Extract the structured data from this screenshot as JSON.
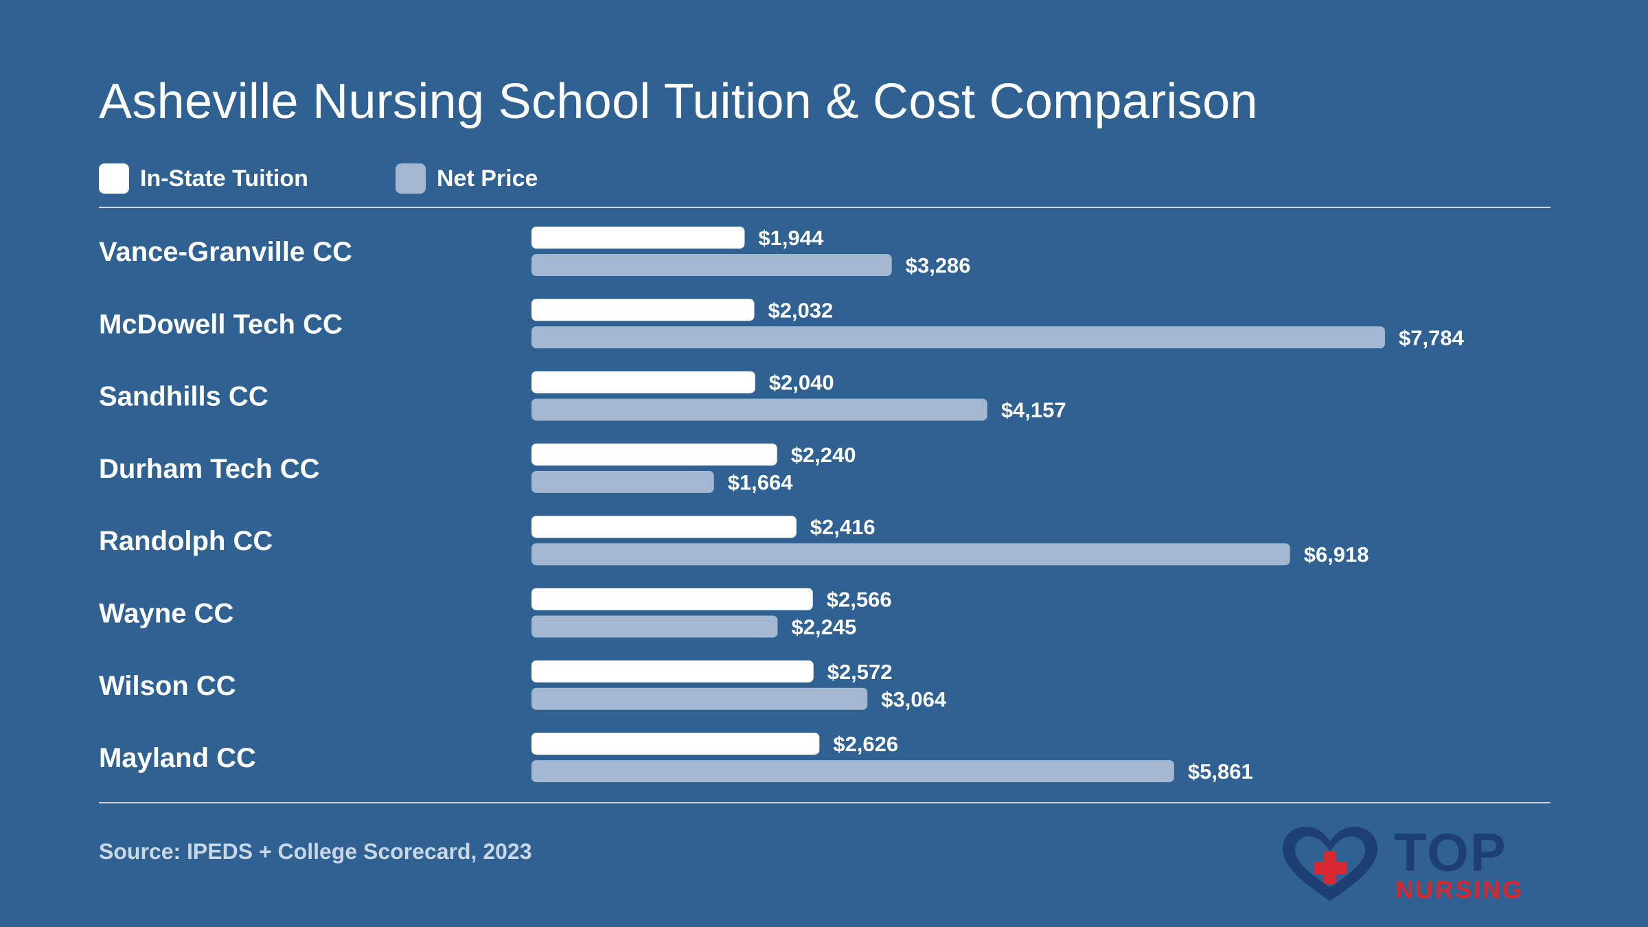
{
  "chart_data": {
    "type": "bar",
    "orientation": "horizontal",
    "title": "Asheville Nursing School Tuition & Cost Comparison",
    "categories": [
      "Vance-Granville CC",
      "McDowell Tech CC",
      "Sandhills CC",
      "Durham Tech CC",
      "Randolph CC",
      "Wayne CC",
      "Wilson CC",
      "Mayland CC"
    ],
    "series": [
      {
        "name": "In-State Tuition",
        "color": "#ffffff",
        "values": [
          1944,
          2032,
          2040,
          2240,
          2416,
          2566,
          2572,
          2626
        ],
        "labels": [
          "$1,944",
          "$2,032",
          "$2,040",
          "$2,240",
          "$2,416",
          "$2,566",
          "$2,572",
          "$2,626"
        ]
      },
      {
        "name": "Net Price",
        "color": "#a3b8d0",
        "values": [
          3286,
          7784,
          4157,
          1664,
          6918,
          2245,
          3064,
          5861
        ],
        "labels": [
          "$3,286",
          "$7,784",
          "$4,157",
          "$1,664",
          "$6,918",
          "$2,245",
          "$3,064",
          "$5,861"
        ]
      }
    ],
    "xlim": [
      0,
      7784
    ],
    "grid": false,
    "legend": "top-left",
    "source": "Source: IPEDS + College Scorecard, 2023"
  },
  "logo": {
    "top": "TOP",
    "sub": "NURSING"
  },
  "colors": {
    "background": "#2f6293",
    "tuition": "#ffffff",
    "net_price": "#a3b8d0",
    "logo_red": "#d8282f",
    "logo_navy": "#1e3f73"
  }
}
